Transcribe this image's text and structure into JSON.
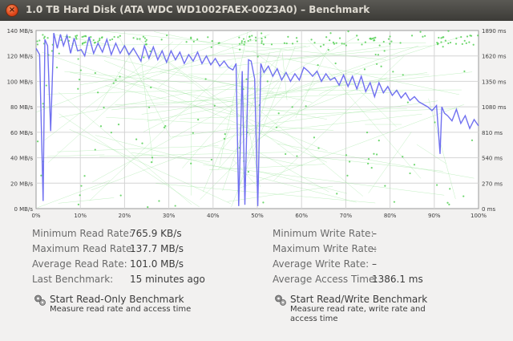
{
  "window": {
    "title": "1.0 TB Hard Disk (ATA WDC WD1002FAEX-00Z3A0) – Benchmark"
  },
  "chart_data": {
    "type": "line",
    "left_axis": {
      "ticks": [
        "140 MB/s",
        "120 MB/s",
        "100 MB/s",
        "80 MB/s",
        "60 MB/s",
        "40 MB/s",
        "20 MB/s",
        "0 MB/s"
      ],
      "range": [
        0,
        140
      ],
      "unit": "MB/s"
    },
    "right_axis": {
      "ticks": [
        "1890 ms",
        "1620 ms",
        "1350 ms",
        "1080 ms",
        "810 ms",
        "540 ms",
        "270 ms",
        "0 ms"
      ],
      "range": [
        0,
        1890
      ],
      "unit": "ms"
    },
    "x_axis": {
      "ticks": [
        "0%",
        "10%",
        "20%",
        "30%",
        "40%",
        "50%",
        "60%",
        "70%",
        "80%",
        "90%",
        "100%"
      ],
      "range": [
        0,
        100
      ]
    },
    "grid": true,
    "series": [
      {
        "color": "#7070f0",
        "x": [
          0,
          0.8,
          1.6,
          2,
          2.6,
          3.3,
          4,
          4.8,
          5.5,
          6.2,
          7,
          7.8,
          8.6,
          9.4,
          10.2,
          11,
          12,
          13,
          14,
          15,
          16,
          17,
          18,
          19,
          20,
          21,
          22,
          23,
          23.7,
          24.5,
          25.5,
          26.5,
          27.5,
          28.5,
          29.5,
          30.5,
          31.5,
          32.5,
          33.5,
          34.5,
          35.5,
          36.5,
          37.5,
          38.5,
          39.5,
          40.5,
          41.5,
          42.5,
          43.5,
          44.5,
          45.2,
          45.8,
          46.6,
          47.2,
          48,
          48.6,
          49.4,
          50.1,
          50.8,
          51.5,
          52.5,
          53.5,
          54.5,
          55.5,
          56.5,
          57.5,
          58.5,
          59.5,
          60.5,
          61.5,
          62.5,
          63.5,
          64.5,
          65.5,
          66.5,
          67.5,
          68.5,
          69.5,
          70.5,
          71.5,
          72.5,
          73.5,
          74.5,
          75.5,
          76.5,
          77.5,
          78.5,
          79.5,
          80.5,
          81.5,
          82.5,
          83.5,
          84.5,
          85.5,
          86.5,
          87.5,
          88.5,
          89.5,
          90.5,
          91.3,
          91.7,
          92.3,
          93,
          94,
          95,
          96,
          97,
          98,
          99,
          100
        ],
        "y": [
          126,
          121,
          6,
          133,
          128,
          61,
          138,
          126,
          137,
          128,
          136,
          122,
          134,
          124,
          125,
          120,
          135,
          122,
          130,
          123,
          133,
          121,
          130,
          122,
          128,
          121,
          126,
          120,
          116,
          128,
          118,
          127,
          117,
          124,
          115,
          124,
          117,
          123,
          114,
          121,
          116,
          123,
          114,
          120,
          113,
          118,
          112,
          116,
          111,
          109,
          114,
          2,
          108,
          3,
          117,
          116,
          102,
          2,
          114,
          107,
          112,
          104,
          110,
          101,
          107,
          100,
          106,
          101,
          111,
          108,
          104,
          108,
          100,
          106,
          101,
          103,
          97,
          105,
          96,
          104,
          94,
          104,
          92,
          99,
          88,
          99,
          91,
          96,
          89,
          93,
          87,
          91,
          85,
          88,
          84,
          82,
          80,
          77,
          81,
          43,
          80,
          75,
          73,
          69,
          78,
          67,
          73,
          63,
          70,
          65
        ]
      }
    ]
  },
  "read": {
    "min": {
      "label": "Minimum Read Rate:",
      "value": "765.9 KB/s"
    },
    "max": {
      "label": "Maximum Read Rate:",
      "value": "137.7 MB/s"
    },
    "avg": {
      "label": "Average Read Rate:",
      "value": "101.0 MB/s"
    },
    "last": {
      "label": "Last Benchmark:",
      "value": "15 minutes ago"
    }
  },
  "write": {
    "min": {
      "label": "Minimum Write Rate:",
      "value": "–"
    },
    "max": {
      "label": "Maximum Write Rate:",
      "value": "–"
    },
    "avg": {
      "label": "Average Write Rate:",
      "value": "–"
    },
    "access": {
      "label": "Average Access Time:",
      "value": "1386.1 ms"
    }
  },
  "actions": {
    "read_only": {
      "title": "Start Read-Only Benchmark",
      "desc": "Measure read rate and access time",
      "icon": "benchmark-gears-icon"
    },
    "read_write": {
      "title": "Start Read/Write Benchmark",
      "desc": "Measure read rate, write rate and access time",
      "icon": "benchmark-gears-icon"
    }
  }
}
